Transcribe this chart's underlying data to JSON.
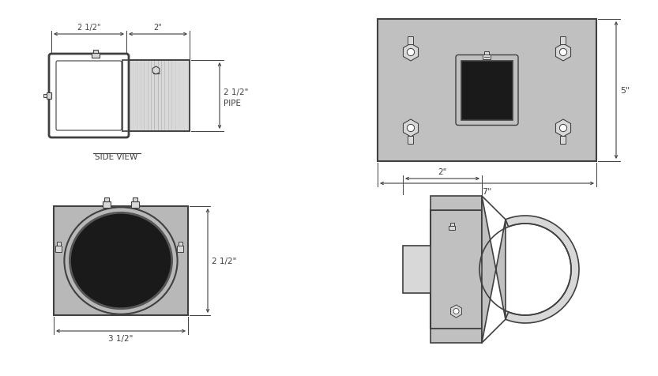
{
  "bg_color": "#ffffff",
  "line_color": "#404040",
  "gray_fill": "#c0c0c0",
  "dark_fill": "#1a1a1a",
  "light_gray": "#d8d8d8",
  "silver": "#b8b8b8",
  "top_left": {
    "label": "SIDE VIEW",
    "dim_top1": "2 1/2\"",
    "dim_top2": "2\"",
    "dim_right1": "2 1/2\"",
    "dim_right2": "PIPE"
  },
  "top_right": {
    "dim_right": "5\"",
    "dim_bottom": "7\""
  },
  "bottom_left": {
    "dim_right": "2 1/2\"",
    "dim_bottom": "3 1/2\""
  },
  "bottom_right": {
    "dim_top": "2\""
  }
}
